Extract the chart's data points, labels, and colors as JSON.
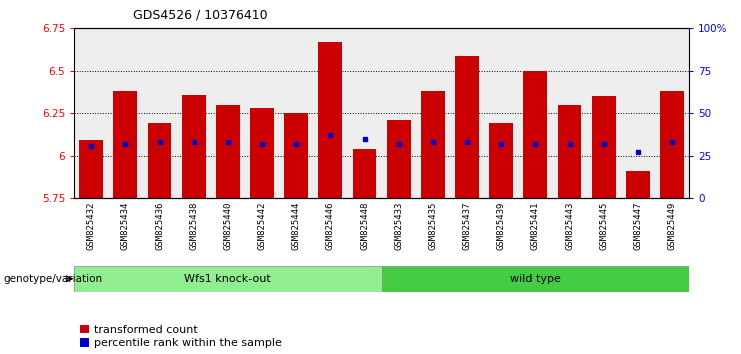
{
  "title": "GDS4526 / 10376410",
  "samples": [
    "GSM825432",
    "GSM825434",
    "GSM825436",
    "GSM825438",
    "GSM825440",
    "GSM825442",
    "GSM825444",
    "GSM825446",
    "GSM825448",
    "GSM825433",
    "GSM825435",
    "GSM825437",
    "GSM825439",
    "GSM825441",
    "GSM825443",
    "GSM825445",
    "GSM825447",
    "GSM825449"
  ],
  "red_values": [
    6.09,
    6.38,
    6.19,
    6.36,
    6.3,
    6.28,
    6.25,
    6.67,
    6.04,
    6.21,
    6.38,
    6.59,
    6.19,
    6.5,
    6.3,
    6.35,
    5.91,
    6.38
  ],
  "blue_values": [
    6.06,
    6.07,
    6.08,
    6.08,
    6.08,
    6.07,
    6.07,
    6.12,
    6.1,
    6.07,
    6.08,
    6.08,
    6.07,
    6.07,
    6.07,
    6.07,
    6.02,
    6.08
  ],
  "ymin": 5.75,
  "ymax": 6.75,
  "group1_label": "Wfs1 knock-out",
  "group2_label": "wild type",
  "group1_count": 9,
  "group2_count": 9,
  "group1_color": "#90EE90",
  "group2_color": "#44CC44",
  "bar_color": "#CC0000",
  "blue_color": "#0000CC",
  "legend1": "transformed count",
  "legend2": "percentile rank within the sample",
  "xlabel": "genotype/variation"
}
